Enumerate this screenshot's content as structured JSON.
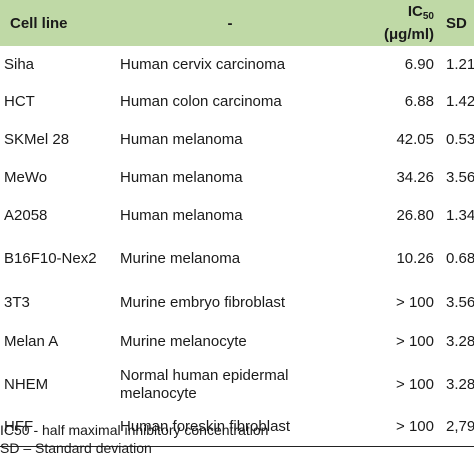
{
  "table": {
    "headers": {
      "cell_line": "Cell line",
      "description": "-",
      "ic50_main": "IC",
      "ic50_sub": "50",
      "ic50_unit": "(μg/ml)",
      "sd": "SD"
    },
    "rows": [
      {
        "cell_line": "Siha",
        "description": "Human cervix carcinoma",
        "ic50": "6.90",
        "sd": "1.21"
      },
      {
        "cell_line": "HCT",
        "description": "Human colon carcinoma",
        "ic50": "6.88",
        "sd": "1.42"
      },
      {
        "cell_line": "SKMel 28",
        "description": "Human melanoma",
        "ic50": "42.05",
        "sd": "0.53"
      },
      {
        "cell_line": "MeWo",
        "description": "Human melanoma",
        "ic50": "34.26",
        "sd": "3.56"
      },
      {
        "cell_line": "A2058",
        "description": "Human melanoma",
        "ic50": "26.80",
        "sd": "1.34"
      },
      {
        "cell_line": "B16F10-Nex2",
        "description": "Murine melanoma",
        "ic50": "10.26",
        "sd": "0.68"
      },
      {
        "cell_line": "3T3",
        "description": "Murine embryo fibroblast",
        "ic50": "> 100",
        "sd": "3.56"
      },
      {
        "cell_line": "Melan A",
        "description": "Murine melanocyte",
        "ic50": "> 100",
        "sd": "3.28"
      },
      {
        "cell_line": "NHEM",
        "description": "Normal human epidermal melanocyte",
        "ic50": "> 100",
        "sd": "3.28"
      },
      {
        "cell_line": "HFF",
        "description": "Human foreskin fibroblast",
        "ic50": "> 100",
        "sd": "2,79"
      }
    ]
  },
  "footnotes": {
    "ic50": "IC50 - half maximal inhibitory concentration",
    "sd": "SD – Standard deviation"
  }
}
